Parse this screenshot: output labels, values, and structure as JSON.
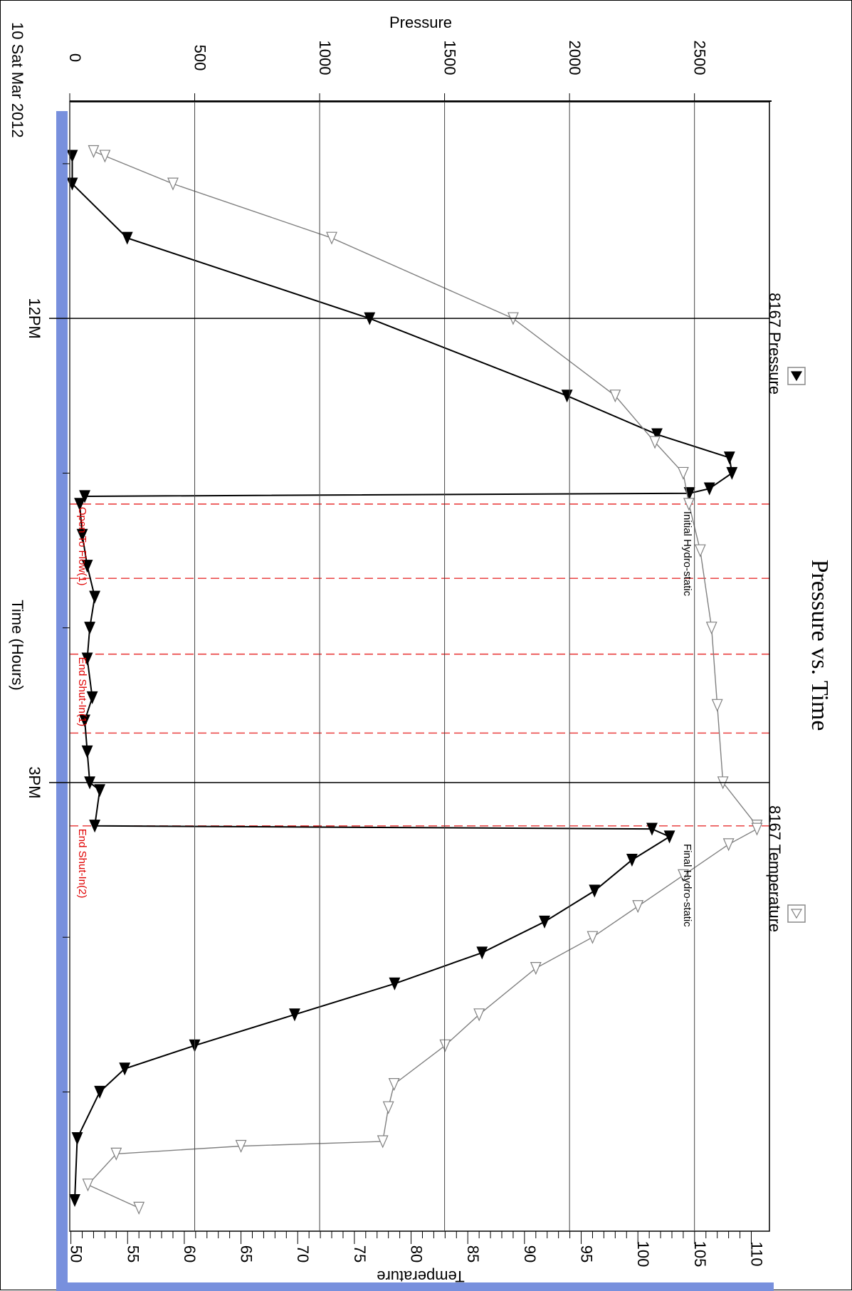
{
  "chart_data": {
    "type": "line",
    "title": "Pressure vs. Time",
    "date_label": "10 Sat Mar 2012",
    "xlabel": "Time (Hours)",
    "ylabel_left": "Pressure",
    "ylabel_right": "Temperature",
    "time_ticks": [
      "12PM",
      "3PM"
    ],
    "pressure_ticks": [
      "0",
      "500",
      "1000",
      "1500",
      "2000",
      "2500"
    ],
    "temperature_ticks": [
      "50",
      "55",
      "60",
      "65",
      "70",
      "75",
      "80",
      "85",
      "90",
      "95",
      "100",
      "105",
      "110"
    ],
    "pressure_range": [
      0,
      2800
    ],
    "temperature_range": [
      49.9,
      111.6
    ],
    "time_range_hours": [
      10.6,
      17.9
    ],
    "grid": true,
    "series": [
      {
        "name": "8167 Pressure",
        "axis": "pressure",
        "color": "#000000",
        "marker": "filled-triangle",
        "x": [
          10.95,
          11.13,
          11.48,
          12.0,
          12.5,
          12.75,
          12.9,
          13.0,
          13.1,
          13.13,
          13.15,
          13.2,
          13.4,
          13.6,
          13.8,
          14.0,
          14.2,
          14.45,
          14.6,
          14.8,
          15.0,
          15.05,
          15.28,
          15.3,
          15.35,
          15.5,
          15.7,
          15.9,
          16.1,
          16.3,
          16.5,
          16.7,
          16.85,
          17.0,
          17.3,
          17.7
        ],
        "y": [
          10,
          10,
          230,
          1200,
          1990,
          2350,
          2640,
          2650,
          2560,
          2480,
          60,
          40,
          50,
          70,
          100,
          80,
          70,
          90,
          60,
          70,
          80,
          120,
          100,
          2330,
          2400,
          2250,
          2100,
          1900,
          1650,
          1300,
          900,
          500,
          220,
          120,
          30,
          20
        ]
      },
      {
        "name": "8167 Temperature",
        "axis": "temperature",
        "color": "#808080",
        "marker": "open-triangle",
        "x": [
          10.92,
          10.95,
          11.13,
          11.48,
          12.0,
          12.5,
          12.8,
          13.0,
          13.2,
          13.5,
          14.0,
          14.5,
          15.0,
          15.28,
          15.3,
          15.4,
          15.6,
          15.8,
          16.0,
          16.2,
          16.5,
          16.7,
          16.95,
          17.1,
          17.32,
          17.35,
          17.4,
          17.6,
          17.75
        ],
        "y": [
          52.0,
          53.0,
          59.0,
          73.0,
          89.0,
          98.0,
          101.5,
          104.0,
          104.5,
          105.5,
          106.5,
          107.0,
          107.5,
          110.5,
          110.5,
          108.0,
          104.0,
          100.0,
          96.0,
          91.0,
          86.0,
          83.0,
          78.5,
          78.0,
          77.5,
          65.0,
          54.0,
          51.5,
          56.0
        ]
      }
    ],
    "event_markers": [
      {
        "time": 13.2,
        "label": "Open To Flow(1)"
      },
      {
        "time": 13.68,
        "label": ""
      },
      {
        "time": 14.17,
        "label": "End Shut-In(1)"
      },
      {
        "time": 14.68,
        "label": ""
      },
      {
        "time": 15.28,
        "label": "End Shut-In(2)"
      }
    ],
    "annotations": [
      {
        "time": 13.2,
        "label": "Initial Hydro-static"
      },
      {
        "time": 15.35,
        "label": "Final Hydro-static"
      }
    ],
    "legend_placement": "bottom"
  }
}
